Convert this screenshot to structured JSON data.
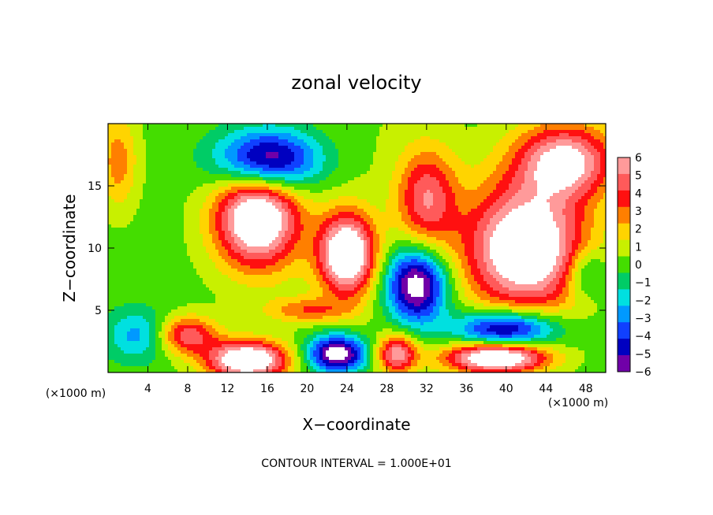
{
  "chart_data": {
    "type": "heatmap",
    "title": "zonal velocity",
    "xlabel": "X−coordinate",
    "ylabel": "Z−coordinate",
    "x_units_left": "(×1000 m)",
    "x_units_right": "(×1000 m)",
    "xlim": [
      0,
      50
    ],
    "ylim": [
      0,
      20
    ],
    "x_ticks": [
      4,
      8,
      12,
      16,
      20,
      24,
      28,
      32,
      36,
      40,
      44,
      48
    ],
    "y_ticks": [
      5,
      10,
      15
    ],
    "colorbar": {
      "levels": [
        6,
        5,
        4,
        3,
        2,
        1,
        0,
        -1,
        -2,
        -3,
        -4,
        -5,
        -6
      ],
      "colors": [
        "#ff9a9a",
        "#ff5a5a",
        "#ff1010",
        "#ff7f00",
        "#ffd400",
        "#c8f000",
        "#44dd00",
        "#00cc66",
        "#00e0e0",
        "#0099ff",
        "#1040ff",
        "#0000c0",
        "#7000a8"
      ]
    },
    "footnote": "CONTOUR INTERVAL = 1.000E+01",
    "features": [
      {
        "x": 15,
        "y": 12.5,
        "v": 9,
        "sx": 4.2,
        "sy": 4.0
      },
      {
        "x": 16,
        "y": 17,
        "v": -8,
        "sx": 5,
        "sy": 2.5
      },
      {
        "x": 24,
        "y": 9.5,
        "v": 9,
        "sx": 2.8,
        "sy": 3.2
      },
      {
        "x": 31,
        "y": 7,
        "v": -8,
        "sx": 3,
        "sy": 3
      },
      {
        "x": 42,
        "y": 10,
        "v": 9,
        "sx": 6,
        "sy": 5
      },
      {
        "x": 46,
        "y": 17,
        "v": 7,
        "sx": 5,
        "sy": 3
      },
      {
        "x": 40,
        "y": 3.5,
        "v": -7,
        "sx": 5,
        "sy": 1.5
      },
      {
        "x": 39,
        "y": 1.2,
        "v": 9,
        "sx": 5,
        "sy": 1.2
      },
      {
        "x": 23,
        "y": 1.5,
        "v": -8,
        "sx": 3,
        "sy": 1.5
      },
      {
        "x": 14,
        "y": 1,
        "v": 9,
        "sx": 4,
        "sy": 1.5
      },
      {
        "x": 29,
        "y": 1.5,
        "v": 6,
        "sx": 2,
        "sy": 1.5
      },
      {
        "x": 8,
        "y": 3,
        "v": 5,
        "sx": 3,
        "sy": 1.5
      },
      {
        "x": 1,
        "y": 17,
        "v": 3,
        "sx": 2,
        "sy": 4
      },
      {
        "x": 3,
        "y": 3,
        "v": -3,
        "sx": 3,
        "sy": 2
      },
      {
        "x": 32,
        "y": 14,
        "v": 5,
        "sx": 3,
        "sy": 4
      },
      {
        "x": 48,
        "y": 8,
        "v": -3,
        "sx": 2,
        "sy": 2
      },
      {
        "x": 20,
        "y": 5,
        "v": 3,
        "sx": 4,
        "sy": 1
      }
    ]
  }
}
